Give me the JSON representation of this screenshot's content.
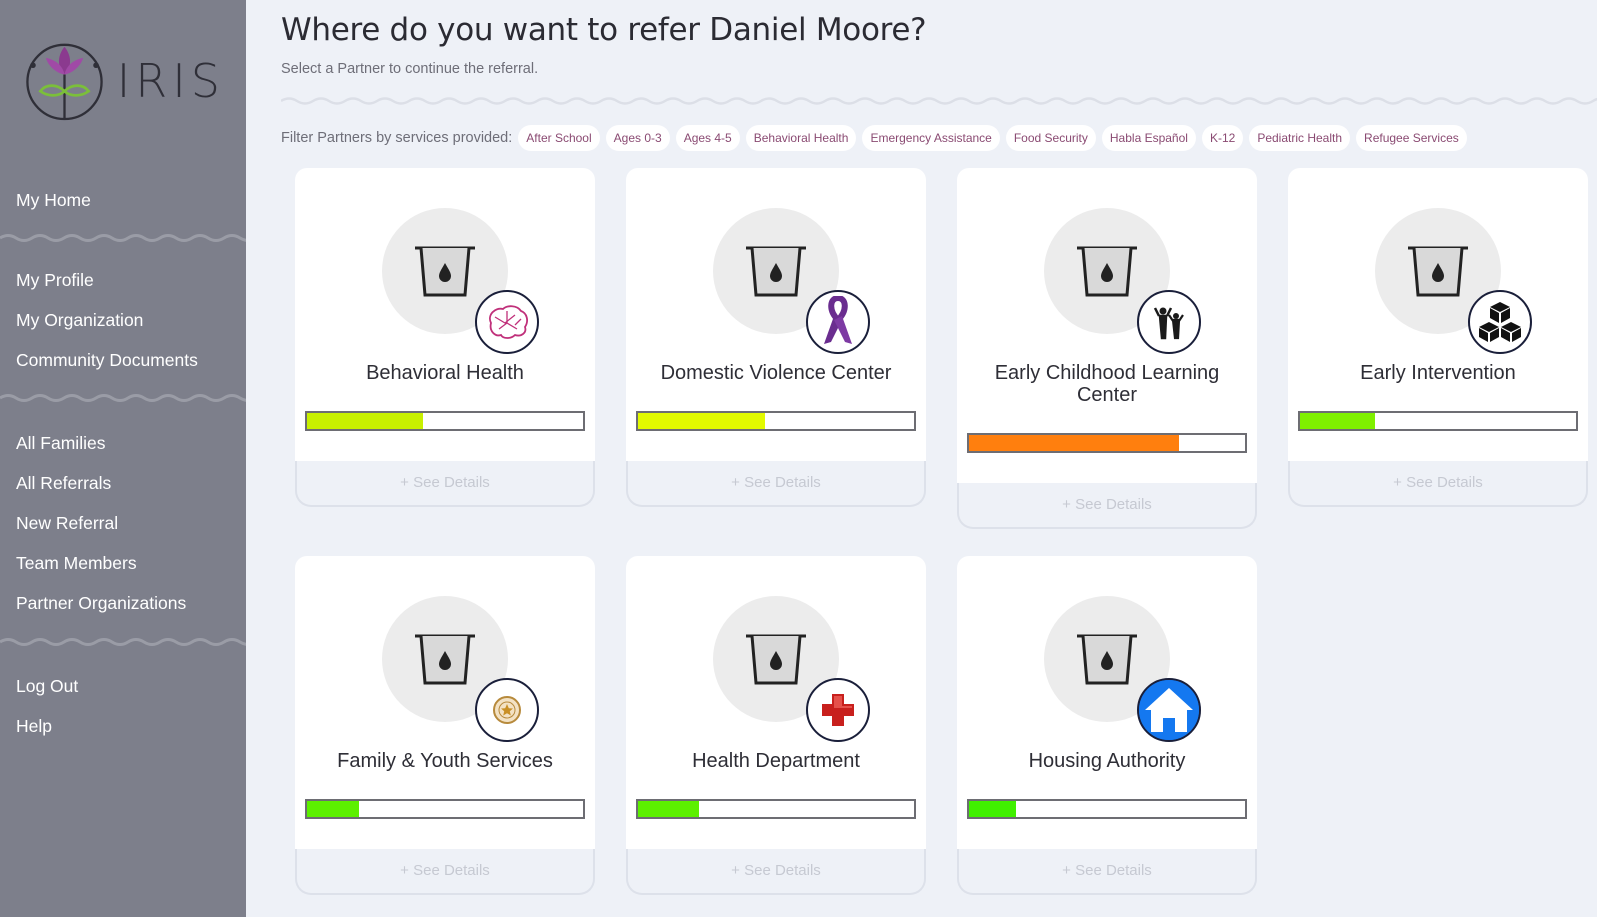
{
  "app": {
    "logo_text": "IRIS"
  },
  "sidebar": {
    "groups": [
      [
        {
          "label": "My Home"
        }
      ],
      [
        {
          "label": "My Profile"
        },
        {
          "label": "My Organization"
        },
        {
          "label": "Community Documents"
        }
      ],
      [
        {
          "label": "All Families"
        },
        {
          "label": "All Referrals"
        },
        {
          "label": "New Referral"
        },
        {
          "label": "Team Members"
        },
        {
          "label": "Partner Organizations"
        }
      ],
      [
        {
          "label": "Log Out"
        },
        {
          "label": "Help"
        }
      ]
    ]
  },
  "header": {
    "title": "Where do you want to refer Daniel Moore?",
    "subtitle": "Select a Partner to continue the referral."
  },
  "filter": {
    "label": "Filter Partners by services provided:",
    "chips": [
      "After School",
      "Ages 0-3",
      "Ages 4-5",
      "Behavioral Health",
      "Emergency Assistance",
      "Food Security",
      "Habla Español",
      "K-12",
      "Pediatric Health",
      "Refugee Services"
    ]
  },
  "partners": [
    {
      "name": "Behavioral Health",
      "badge_icon": "brain-icon",
      "capacity": 0.42,
      "bar_color": "#c8f000",
      "details_label": "+ See Details"
    },
    {
      "name": "Domestic Violence Center",
      "badge_icon": "ribbon-icon",
      "capacity": 0.46,
      "bar_color": "#e2fa00",
      "details_label": "+ See Details"
    },
    {
      "name": "Early Childhood Learning Center",
      "badge_icon": "children-icon",
      "capacity": 0.76,
      "bar_color": "#ff7f0e",
      "details_label": "+ See Details"
    },
    {
      "name": "Early Intervention",
      "badge_icon": "blocks-icon",
      "capacity": 0.27,
      "bar_color": "#7ff000",
      "details_label": "+ See Details"
    },
    {
      "name": "Family & Youth Services",
      "badge_icon": "star-seal-icon",
      "capacity": 0.19,
      "bar_color": "#5cf000",
      "details_label": "+ See Details"
    },
    {
      "name": "Health Department",
      "badge_icon": "red-cross-icon",
      "capacity": 0.22,
      "bar_color": "#5cf000",
      "details_label": "+ See Details"
    },
    {
      "name": "Housing Authority",
      "badge_icon": "house-icon",
      "capacity": 0.17,
      "bar_color": "#40f000",
      "details_label": "+ See Details"
    }
  ]
}
